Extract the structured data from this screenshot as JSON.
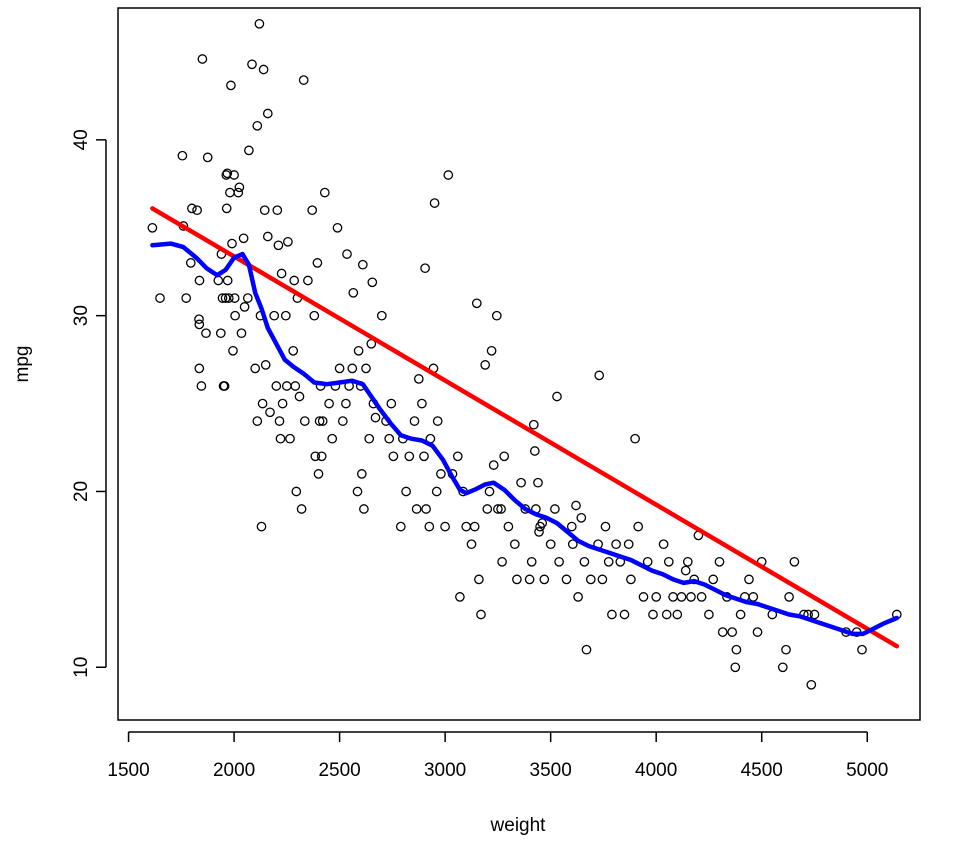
{
  "chart_data": {
    "type": "scatter",
    "title": "",
    "xlabel": "weight",
    "ylabel": "mpg",
    "xlim": [
      1450,
      5250
    ],
    "ylim": [
      7,
      47.5
    ],
    "xticks": [
      "1500",
      "2000",
      "2500",
      "3000",
      "3500",
      "4000",
      "4500",
      "5000"
    ],
    "yticks": [
      "10",
      "20",
      "30",
      "40"
    ],
    "grid": false,
    "legend": "none",
    "colors": {
      "points": "#000000",
      "linear_fit": "#ff0000",
      "smooth_fit": "#0000ff"
    },
    "points": [
      [
        1613,
        35
      ],
      [
        1649,
        31
      ],
      [
        1755,
        39.1
      ],
      [
        1760,
        35.1
      ],
      [
        1773,
        31
      ],
      [
        1795,
        33
      ],
      [
        1800,
        36.1
      ],
      [
        1825,
        36
      ],
      [
        1834,
        29.8
      ],
      [
        1835,
        29.5
      ],
      [
        1835,
        27
      ],
      [
        1836,
        32
      ],
      [
        1845,
        26
      ],
      [
        1850,
        44.6
      ],
      [
        1867,
        29
      ],
      [
        1875,
        39
      ],
      [
        1925,
        32
      ],
      [
        1937,
        29
      ],
      [
        1940,
        33.5
      ],
      [
        1945,
        31
      ],
      [
        1950,
        26
      ],
      [
        1955,
        26
      ],
      [
        1960,
        31
      ],
      [
        1963,
        38
      ],
      [
        1965,
        36.1
      ],
      [
        1968,
        38.1
      ],
      [
        1970,
        32
      ],
      [
        1975,
        31
      ],
      [
        1980,
        37
      ],
      [
        1985,
        43.1
      ],
      [
        1990,
        34.1
      ],
      [
        1995,
        28
      ],
      [
        2000,
        38
      ],
      [
        2003,
        31
      ],
      [
        2005,
        30
      ],
      [
        2020,
        37
      ],
      [
        2025,
        37.3
      ],
      [
        2035,
        29
      ],
      [
        2045,
        34.4
      ],
      [
        2050,
        30.5
      ],
      [
        2065,
        31
      ],
      [
        2070,
        39.4
      ],
      [
        2085,
        44.3
      ],
      [
        2100,
        27
      ],
      [
        2110,
        40.8
      ],
      [
        2110,
        24
      ],
      [
        2120,
        46.6
      ],
      [
        2125,
        30
      ],
      [
        2130,
        18
      ],
      [
        2135,
        25
      ],
      [
        2140,
        44
      ],
      [
        2145,
        36
      ],
      [
        2150,
        27.2
      ],
      [
        2160,
        41.5
      ],
      [
        2160,
        34.5
      ],
      [
        2170,
        24.5
      ],
      [
        2190,
        30
      ],
      [
        2200,
        26
      ],
      [
        2205,
        36
      ],
      [
        2210,
        34
      ],
      [
        2215,
        24
      ],
      [
        2220,
        23
      ],
      [
        2225,
        32.4
      ],
      [
        2230,
        25
      ],
      [
        2245,
        30
      ],
      [
        2250,
        26
      ],
      [
        2255,
        34.2
      ],
      [
        2265,
        23
      ],
      [
        2280,
        28
      ],
      [
        2285,
        32
      ],
      [
        2290,
        26
      ],
      [
        2295,
        20
      ],
      [
        2300,
        31
      ],
      [
        2310,
        25.4
      ],
      [
        2320,
        19
      ],
      [
        2330,
        43.4
      ],
      [
        2335,
        24
      ],
      [
        2350,
        32
      ],
      [
        2370,
        36
      ],
      [
        2380,
        30
      ],
      [
        2385,
        22
      ],
      [
        2395,
        33
      ],
      [
        2400,
        21
      ],
      [
        2405,
        24
      ],
      [
        2410,
        26
      ],
      [
        2415,
        22
      ],
      [
        2420,
        24
      ],
      [
        2430,
        37
      ],
      [
        2450,
        25
      ],
      [
        2465,
        23
      ],
      [
        2480,
        26
      ],
      [
        2490,
        35
      ],
      [
        2500,
        27
      ],
      [
        2515,
        24
      ],
      [
        2530,
        25
      ],
      [
        2535,
        33.5
      ],
      [
        2545,
        26
      ],
      [
        2560,
        27
      ],
      [
        2565,
        31.3
      ],
      [
        2585,
        20
      ],
      [
        2590,
        28
      ],
      [
        2600,
        26
      ],
      [
        2605,
        21
      ],
      [
        2610,
        32.9
      ],
      [
        2615,
        19
      ],
      [
        2625,
        27
      ],
      [
        2640,
        23
      ],
      [
        2650,
        28.4
      ],
      [
        2655,
        31.9
      ],
      [
        2660,
        25
      ],
      [
        2670,
        24.2
      ],
      [
        2700,
        30
      ],
      [
        2720,
        24
      ],
      [
        2735,
        23
      ],
      [
        2745,
        25
      ],
      [
        2755,
        22
      ],
      [
        2790,
        18
      ],
      [
        2800,
        23
      ],
      [
        2815,
        20
      ],
      [
        2830,
        22
      ],
      [
        2855,
        24
      ],
      [
        2865,
        19
      ],
      [
        2875,
        26.4
      ],
      [
        2890,
        25
      ],
      [
        2900,
        22
      ],
      [
        2905,
        32.7
      ],
      [
        2910,
        19
      ],
      [
        2925,
        18
      ],
      [
        2930,
        23
      ],
      [
        2945,
        27
      ],
      [
        2950,
        36.4
      ],
      [
        2960,
        20
      ],
      [
        2965,
        24
      ],
      [
        2980,
        21
      ],
      [
        3000,
        18
      ],
      [
        3015,
        38
      ],
      [
        3035,
        21
      ],
      [
        3060,
        22
      ],
      [
        3070,
        14
      ],
      [
        3085,
        20
      ],
      [
        3100,
        18
      ],
      [
        3125,
        17
      ],
      [
        3140,
        18
      ],
      [
        3150,
        30.7
      ],
      [
        3160,
        15
      ],
      [
        3170,
        13
      ],
      [
        3190,
        27.2
      ],
      [
        3200,
        19
      ],
      [
        3210,
        20
      ],
      [
        3220,
        28
      ],
      [
        3230,
        21.5
      ],
      [
        3245,
        30
      ],
      [
        3250,
        19
      ],
      [
        3265,
        19
      ],
      [
        3270,
        16
      ],
      [
        3280,
        22
      ],
      [
        3300,
        18
      ],
      [
        3330,
        17
      ],
      [
        3340,
        15
      ],
      [
        3360,
        20.5
      ],
      [
        3380,
        19
      ],
      [
        3400,
        15
      ],
      [
        3410,
        16
      ],
      [
        3420,
        23.8
      ],
      [
        3425,
        22.3
      ],
      [
        3430,
        19
      ],
      [
        3440,
        20.5
      ],
      [
        3445,
        17.7
      ],
      [
        3450,
        18
      ],
      [
        3460,
        18.2
      ],
      [
        3470,
        15
      ],
      [
        3500,
        17
      ],
      [
        3520,
        19
      ],
      [
        3530,
        25.4
      ],
      [
        3540,
        16
      ],
      [
        3575,
        15
      ],
      [
        3600,
        18
      ],
      [
        3605,
        17
      ],
      [
        3620,
        19.2
      ],
      [
        3630,
        14
      ],
      [
        3645,
        18.5
      ],
      [
        3660,
        16
      ],
      [
        3670,
        11
      ],
      [
        3690,
        15
      ],
      [
        3725,
        17
      ],
      [
        3730,
        26.6
      ],
      [
        3745,
        15
      ],
      [
        3760,
        18
      ],
      [
        3775,
        16
      ],
      [
        3790,
        13
      ],
      [
        3810,
        17
      ],
      [
        3830,
        16
      ],
      [
        3850,
        13
      ],
      [
        3870,
        17
      ],
      [
        3880,
        15
      ],
      [
        3900,
        23
      ],
      [
        3915,
        18
      ],
      [
        3940,
        14
      ],
      [
        3960,
        16
      ],
      [
        3985,
        13
      ],
      [
        4000,
        14
      ],
      [
        4035,
        17
      ],
      [
        4050,
        13
      ],
      [
        4060,
        16
      ],
      [
        4080,
        14
      ],
      [
        4100,
        13
      ],
      [
        4120,
        14
      ],
      [
        4140,
        15.5
      ],
      [
        4150,
        16
      ],
      [
        4165,
        14
      ],
      [
        4180,
        15
      ],
      [
        4200,
        17.5
      ],
      [
        4215,
        14
      ],
      [
        4250,
        13
      ],
      [
        4270,
        15
      ],
      [
        4300,
        16
      ],
      [
        4315,
        12
      ],
      [
        4335,
        14
      ],
      [
        4360,
        12
      ],
      [
        4375,
        10
      ],
      [
        4380,
        11
      ],
      [
        4400,
        13
      ],
      [
        4420,
        14
      ],
      [
        4440,
        15
      ],
      [
        4460,
        14
      ],
      [
        4480,
        12
      ],
      [
        4500,
        16
      ],
      [
        4550,
        13
      ],
      [
        4600,
        10
      ],
      [
        4615,
        11
      ],
      [
        4630,
        14
      ],
      [
        4655,
        16
      ],
      [
        4700,
        13
      ],
      [
        4720,
        13
      ],
      [
        4735,
        9
      ],
      [
        4750,
        13
      ],
      [
        4900,
        12
      ],
      [
        4950,
        12
      ],
      [
        4975,
        11
      ],
      [
        5140,
        13
      ]
    ],
    "series": [
      {
        "x": [
          1613,
          5140
        ],
        "y": [
          36.1,
          11.2
        ]
      },
      {
        "x": [
          1613,
          1700,
          1760,
          1820,
          1870,
          1920,
          1960,
          2000,
          2040,
          2070,
          2100,
          2130,
          2160,
          2200,
          2240,
          2280,
          2330,
          2380,
          2440,
          2500,
          2560,
          2610,
          2650,
          2690,
          2740,
          2790,
          2840,
          2890,
          2940,
          2990,
          3030,
          3070,
          3100,
          3140,
          3190,
          3230,
          3280,
          3330,
          3380,
          3430,
          3480,
          3530,
          3580,
          3630,
          3680,
          3730,
          3780,
          3830,
          3880,
          3930,
          3980,
          4030,
          4080,
          4130,
          4180,
          4230,
          4280,
          4330,
          4380,
          4430,
          4480,
          4530,
          4580,
          4630,
          4680,
          4730,
          4780,
          4830,
          4880,
          4930,
          4980,
          5030,
          5080,
          5140
        ],
        "y": [
          34,
          34.1,
          33.9,
          33.3,
          32.7,
          32.3,
          32.6,
          33.3,
          33.5,
          32.9,
          31.3,
          30.4,
          29.3,
          28.4,
          27.5,
          27.1,
          26.7,
          26.2,
          26.1,
          26.2,
          26.3,
          26.1,
          25.4,
          24.7,
          23.9,
          23.2,
          23.0,
          22.9,
          22.6,
          21.8,
          20.9,
          20.1,
          19.9,
          20.1,
          20.4,
          20.5,
          20.1,
          19.5,
          19.0,
          18.7,
          18.5,
          18.2,
          17.7,
          17.2,
          16.9,
          16.7,
          16.5,
          16.3,
          16.1,
          15.8,
          15.5,
          15.3,
          15.0,
          14.8,
          14.9,
          14.7,
          14.4,
          14.1,
          13.9,
          13.7,
          13.6,
          13.4,
          13.2,
          13.0,
          12.9,
          12.7,
          12.5,
          12.3,
          12.1,
          11.9,
          11.9,
          12.2,
          12.5,
          12.8
        ]
      }
    ]
  }
}
